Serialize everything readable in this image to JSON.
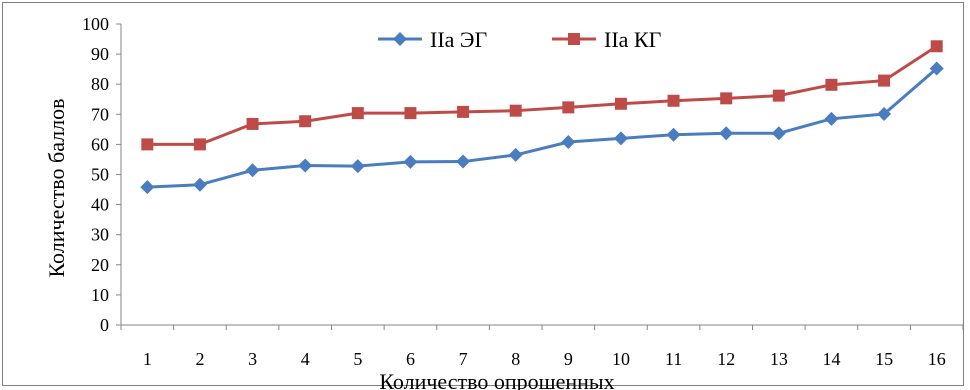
{
  "chart_data": {
    "type": "line",
    "xlabel": "Количество опрошенных",
    "ylabel": "Количество баллов",
    "categories": [
      "1",
      "2",
      "3",
      "4",
      "5",
      "6",
      "7",
      "8",
      "9",
      "10",
      "11",
      "12",
      "13",
      "14",
      "15",
      "16"
    ],
    "ylim": [
      0,
      100
    ],
    "yticks": [
      0,
      10,
      20,
      30,
      40,
      50,
      60,
      70,
      80,
      90,
      100
    ],
    "grid": false,
    "legend_position": "top-center",
    "series": [
      {
        "name": "IIa ЭГ",
        "color": "#4a7dbf",
        "marker": "diamond",
        "values": [
          45.8,
          46.6,
          51.4,
          53.0,
          52.8,
          54.2,
          54.3,
          56.5,
          60.8,
          62.0,
          63.2,
          63.7,
          63.7,
          68.5,
          70.1,
          85.2
        ]
      },
      {
        "name": "IIa КГ",
        "color": "#be4b48",
        "marker": "square",
        "values": [
          60.0,
          60.0,
          66.8,
          67.7,
          70.4,
          70.4,
          70.8,
          71.2,
          72.3,
          73.5,
          74.5,
          75.3,
          76.2,
          79.8,
          81.2,
          92.6
        ]
      }
    ]
  }
}
